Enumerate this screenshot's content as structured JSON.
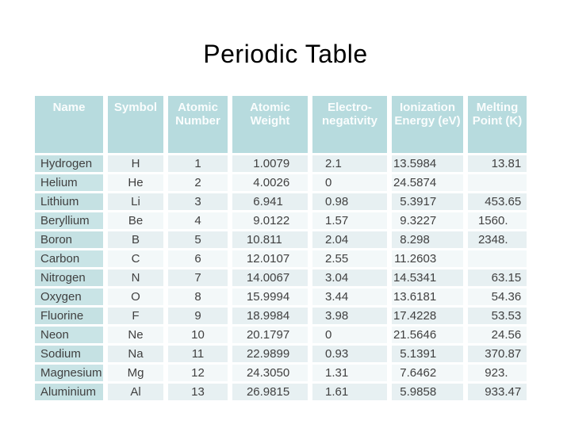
{
  "title": "Periodic Table",
  "colors": {
    "header_bg": "#b7dbde",
    "header_text": "#fafdfd",
    "name_odd": "#c5e1e3",
    "name_even": "#c9e4e6",
    "data_odd": "#e7f0f2",
    "data_even": "#f3f8f9",
    "cell_text": "#404040",
    "title_color": "#000000",
    "page_bg": "#ffffff"
  },
  "table": {
    "headers": [
      "Name",
      "Symbol",
      "Atomic Number",
      "Atomic Weight",
      "Electro-negativity",
      "Ionization Energy (eV)",
      "Melting Point (K)"
    ],
    "rows": [
      [
        "Hydrogen",
        "H",
        "1",
        "1.0079",
        "2.1",
        "13.5984",
        "13.81"
      ],
      [
        "Helium",
        "He",
        "2",
        "4.0026",
        "0",
        "24.5874",
        ""
      ],
      [
        "Lithium",
        "Li",
        "3",
        "6.941",
        "0.98",
        "5.3917",
        "453.65"
      ],
      [
        "Beryllium",
        "Be",
        "4",
        "9.0122",
        "1.57",
        "9.3227",
        "1560."
      ],
      [
        "Boron",
        "B",
        "5",
        "10.811",
        "2.04",
        "8.298",
        "2348."
      ],
      [
        "Carbon",
        "C",
        "6",
        "12.0107",
        "2.55",
        "11.2603",
        ""
      ],
      [
        "Nitrogen",
        "N",
        "7",
        "14.0067",
        "3.04",
        "14.5341",
        "63.15"
      ],
      [
        "Oxygen",
        "O",
        "8",
        "15.9994",
        "3.44",
        "13.6181",
        "54.36"
      ],
      [
        "Fluorine",
        "F",
        "9",
        "18.9984",
        "3.98",
        "17.4228",
        "53.53"
      ],
      [
        "Neon",
        "Ne",
        "10",
        "20.1797",
        "0",
        "21.5646",
        "24.56"
      ],
      [
        "Sodium",
        "Na",
        "11",
        "22.9899",
        "0.93",
        "5.1391",
        "370.87"
      ],
      [
        "Magnesium",
        "Mg",
        "12",
        "24.3050",
        "1.31",
        "7.6462",
        "923."
      ],
      [
        "Aluminium",
        "Al",
        "13",
        "26.9815",
        "1.61",
        "5.9858",
        "933.47"
      ]
    ]
  }
}
